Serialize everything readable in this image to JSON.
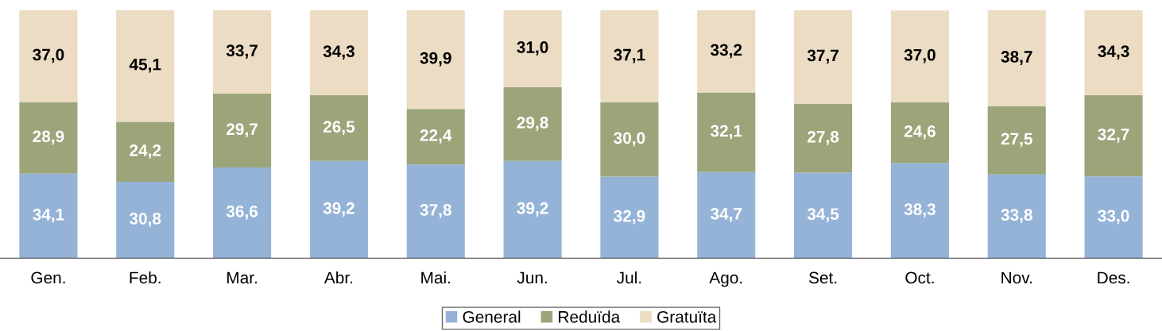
{
  "chart_data": {
    "type": "bar",
    "stacked": true,
    "legend": "bottom",
    "grid": false,
    "categories": [
      "Gen.",
      "Feb.",
      "Mar.",
      "Abr.",
      "Mai.",
      "Jun.",
      "Jul.",
      "Ago.",
      "Set.",
      "Oct.",
      "Nov.",
      "Des."
    ],
    "series": [
      {
        "name": "General",
        "color": "#95b3d7",
        "values": [
          34.1,
          30.8,
          36.6,
          39.2,
          37.8,
          39.2,
          32.9,
          34.7,
          34.5,
          38.3,
          33.8,
          33.0
        ],
        "value_labels": [
          "34,1",
          "30,8",
          "36,6",
          "39,2",
          "37,8",
          "39,2",
          "32,9",
          "34,7",
          "34,5",
          "38,3",
          "33,8",
          "33,0"
        ]
      },
      {
        "name": "Reduïda",
        "color": "#9ca57a",
        "values": [
          28.9,
          24.2,
          29.7,
          26.5,
          22.4,
          29.8,
          30.0,
          32.1,
          27.8,
          24.6,
          27.5,
          32.7
        ],
        "value_labels": [
          "28,9",
          "24,2",
          "29,7",
          "26,5",
          "22,4",
          "29,8",
          "30,0",
          "32,1",
          "27,8",
          "24,6",
          "27,5",
          "32,7"
        ]
      },
      {
        "name": "Gratuïta",
        "color": "#ebdcc3",
        "values": [
          37.0,
          45.1,
          33.7,
          34.3,
          39.9,
          31.0,
          37.1,
          33.2,
          37.7,
          37.0,
          38.7,
          34.3
        ],
        "value_labels": [
          "37,0",
          "45,1",
          "33,7",
          "34,3",
          "39,9",
          "31,0",
          "37,1",
          "33,2",
          "37,7",
          "37,0",
          "38,7",
          "34,3"
        ]
      }
    ]
  }
}
